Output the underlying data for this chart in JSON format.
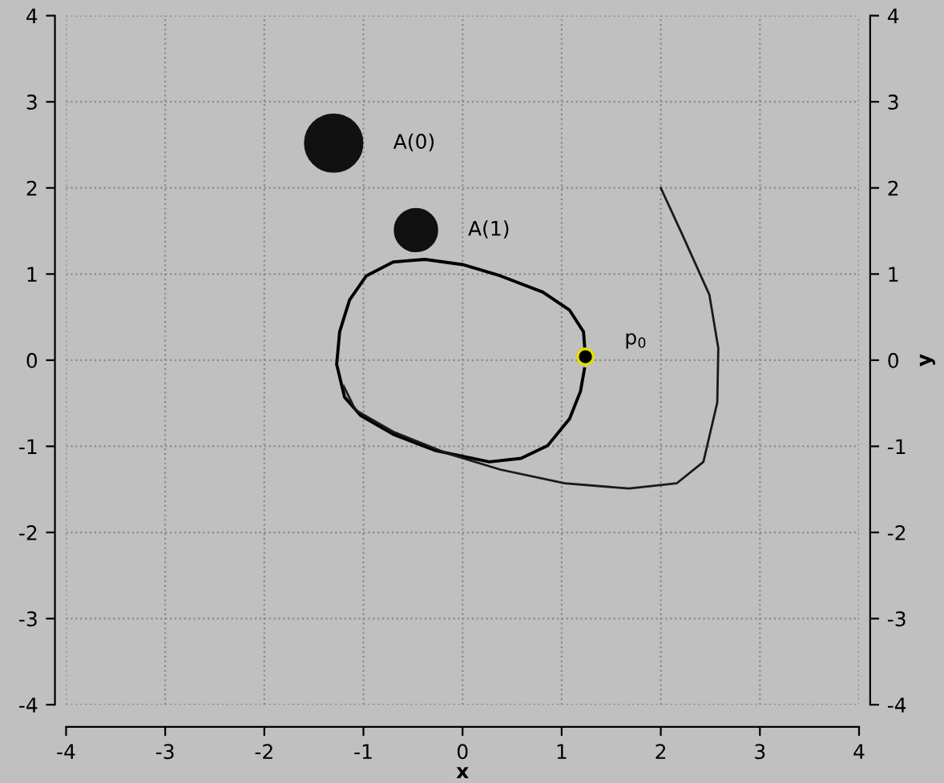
{
  "chart_data": {
    "type": "line",
    "xlabel": "x",
    "y2label": "y",
    "marker": "none",
    "xlim": [
      -4,
      4
    ],
    "ylim": [
      -4,
      4
    ],
    "y2lim": [
      -4,
      4
    ],
    "y2ticks": [
      -4,
      -3,
      -2,
      -1,
      0,
      1,
      2,
      3,
      4
    ],
    "xticks": [
      -4,
      -3,
      -2,
      -1,
      0,
      1,
      2,
      3,
      4
    ],
    "yticks": [
      -4,
      -3,
      -2,
      -1,
      0,
      1,
      2,
      3,
      4
    ],
    "grid": true,
    "line_style": "solid",
    "series": [
      {
        "color": "#000000",
        "x": [
          1.24,
          1.22,
          1.08,
          0.81,
          0.38,
          0,
          -0.38,
          -0.7,
          -0.97,
          -1.14,
          -1.24,
          -1.27,
          -1.19,
          -1.03,
          -0.7,
          -0.27,
          0.27,
          0.59,
          0.86,
          1.08,
          1.19,
          1.23
        ],
        "values": [
          0.04,
          0.33,
          0.58,
          0.79,
          0.98,
          1.11,
          1.17,
          1.14,
          0.98,
          0.7,
          0.33,
          -0.05,
          -0.43,
          -0.64,
          -0.86,
          -1.05,
          -1.18,
          -1.14,
          -0.99,
          -0.68,
          -0.36,
          -0.1
        ]
      },
      {
        "color": "#1a1a1a",
        "x": [
          2.0,
          2.22,
          2.49,
          2.58,
          2.57,
          2.43,
          2.16,
          1.68,
          1.03,
          0.38,
          -0.16,
          -0.7,
          -1.08,
          -1.2
        ],
        "values": [
          2.0,
          1.45,
          0.76,
          0.14,
          -0.49,
          -1.18,
          -1.43,
          -1.49,
          -1.43,
          -1.27,
          -1.08,
          -0.83,
          -0.58,
          -0.3
        ]
      },
      {
        "type": "bubble",
        "marker": "circle",
        "color": "#111111",
        "x": [
          -1.3,
          -0.47
        ],
        "values": [
          2.52,
          1.51
        ],
        "sizes": [
          1,
          0.54
        ]
      },
      {
        "type": "scatter",
        "marker": "circle",
        "color": "#000000",
        "x": [
          1.24
        ],
        "values": [
          0.04
        ]
      }
    ],
    "annotations": [
      {
        "text": "A(0)",
        "x": -1.3,
        "y": 2.52
      },
      {
        "text": "A(1)",
        "x": -0.47,
        "y": 1.51
      },
      {
        "text": "p$_{0}$",
        "x": 1.24,
        "y": 0.04
      }
    ]
  }
}
